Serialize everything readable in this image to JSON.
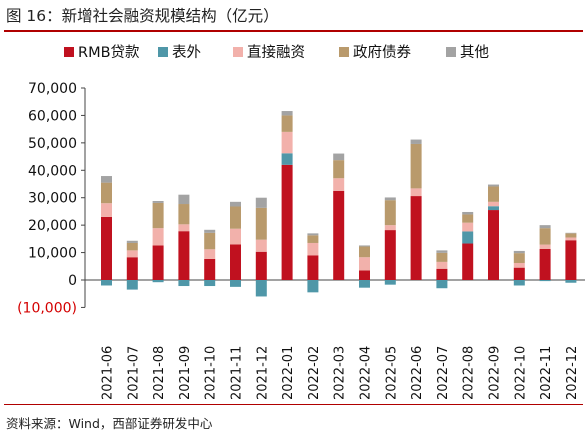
{
  "figure": {
    "title": "图 16：新增社会融资规模结构（亿元）",
    "source": "资料来源：Wind，西部证券研发中心"
  },
  "colors": {
    "rmb": "#c0111f",
    "bill": "#4f97a8",
    "direct": "#f2b1ab",
    "gov": "#b99a6c",
    "other": "#a3a3a3",
    "rule": "#b00000",
    "negative_tick": "#d40000"
  },
  "chart_data": {
    "type": "bar",
    "stacked": true,
    "title": "新增社会融资规模结构（亿元）",
    "xlabel": "",
    "ylabel": "",
    "ylim": [
      -10000,
      70000
    ],
    "yticks": [
      -10000,
      0,
      10000,
      20000,
      30000,
      40000,
      50000,
      60000,
      70000
    ],
    "ytick_labels": [
      "(10,000)",
      "0",
      "10,000",
      "20,000",
      "30,000",
      "40,000",
      "50,000",
      "60,000",
      "70,000"
    ],
    "grid": false,
    "legend_position": "top",
    "categories": [
      "2021-06",
      "2021-07",
      "2021-08",
      "2021-09",
      "2021-10",
      "2021-11",
      "2021-12",
      "2022-01",
      "2022-02",
      "2022-03",
      "2022-04",
      "2022-05",
      "2022-06",
      "2022-07",
      "2022-08",
      "2022-09",
      "2022-10",
      "2022-11",
      "2022-12"
    ],
    "series": [
      {
        "name": "RMB贷款",
        "color_key": "rmb",
        "values": [
          23000,
          8300,
          12600,
          17800,
          7700,
          13000,
          10300,
          42000,
          9000,
          32500,
          3500,
          18200,
          30600,
          4100,
          13300,
          25500,
          4500,
          11300,
          14500
        ]
      },
      {
        "name": "表外",
        "color_key": "bill",
        "values": [
          -2000,
          -3500,
          -800,
          -2200,
          -2200,
          -2500,
          -6000,
          4200,
          -4500,
          0,
          -2800,
          -1700,
          0,
          -3000,
          4400,
          1400,
          -2000,
          -400,
          -1000
        ]
      },
      {
        "name": "直接融资",
        "color_key": "direct",
        "values": [
          5000,
          2500,
          6300,
          2500,
          3500,
          5700,
          4400,
          7800,
          4500,
          4600,
          4800,
          1800,
          2800,
          2500,
          3200,
          1600,
          1700,
          1600,
          1000
        ]
      },
      {
        "name": "政府债券",
        "color_key": "gov",
        "values": [
          7500,
          2700,
          9200,
          7400,
          6000,
          8100,
          11600,
          6000,
          2800,
          6600,
          3900,
          9100,
          16200,
          3300,
          3000,
          5600,
          3600,
          6000,
          1500
        ]
      },
      {
        "name": "其他",
        "color_key": "other",
        "values": [
          2400,
          800,
          700,
          3400,
          1100,
          1700,
          3700,
          1600,
          700,
          2400,
          400,
          1000,
          1600,
          900,
          900,
          700,
          800,
          1100,
          200
        ]
      }
    ]
  }
}
